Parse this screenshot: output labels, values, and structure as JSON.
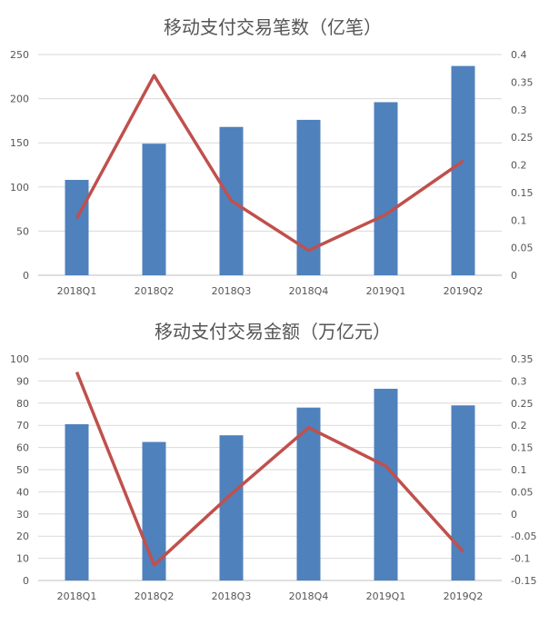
{
  "chart_data": [
    {
      "type": "bar",
      "title": "移动支付交易笔数（亿笔）",
      "categories": [
        "2018Q1",
        "2018Q2",
        "2018Q3",
        "2018Q4",
        "2019Q1",
        "2019Q2"
      ],
      "series": [
        {
          "axis": "left",
          "type": "bar",
          "color": "#4f81bd",
          "values": [
            108,
            149,
            168,
            176,
            196,
            237
          ]
        },
        {
          "axis": "right",
          "type": "line",
          "color": "#c0504d",
          "values": [
            0.103,
            0.362,
            0.135,
            0.045,
            0.11,
            0.207
          ]
        }
      ],
      "ylim_left": [
        0,
        250
      ],
      "yticks_left": [
        "0",
        "50",
        "100",
        "150",
        "200",
        "250"
      ],
      "ylim_right": [
        0,
        0.4
      ],
      "yticks_right": [
        "0",
        "0.05",
        "0.1",
        "0.15",
        "0.2",
        "0.25",
        "0.3",
        "0.35",
        "0.4"
      ],
      "grid": true
    },
    {
      "type": "bar",
      "title": "移动支付交易金额（万亿元）",
      "categories": [
        "2018Q1",
        "2018Q2",
        "2018Q3",
        "2018Q4",
        "2019Q1",
        "2019Q2"
      ],
      "series": [
        {
          "axis": "left",
          "type": "bar",
          "color": "#4f81bd",
          "values": [
            70.5,
            62.5,
            65.5,
            78,
            86.5,
            79
          ]
        },
        {
          "axis": "right",
          "type": "line",
          "color": "#c0504d",
          "values": [
            0.32,
            -0.115,
            0.045,
            0.195,
            0.108,
            -0.085
          ]
        }
      ],
      "ylim_left": [
        0,
        100
      ],
      "yticks_left": [
        "0",
        "10",
        "20",
        "30",
        "40",
        "50",
        "60",
        "70",
        "80",
        "90",
        "100"
      ],
      "ylim_right": [
        -0.15,
        0.35
      ],
      "yticks_right": [
        "-0.15",
        "-0.1",
        "-0.05",
        "0",
        "0.05",
        "0.1",
        "0.15",
        "0.2",
        "0.25",
        "0.3",
        "0.35"
      ],
      "grid": true
    }
  ]
}
